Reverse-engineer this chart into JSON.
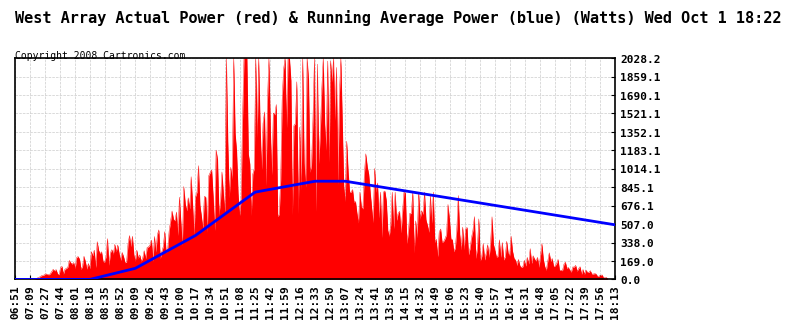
{
  "title": "West Array Actual Power (red) & Running Average Power (blue) (Watts) Wed Oct 1 18:22",
  "copyright": "Copyright 2008 Cartronics.com",
  "y_ticks": [
    0.0,
    169.0,
    338.0,
    507.0,
    676.1,
    845.1,
    1014.1,
    1183.1,
    1352.1,
    1521.1,
    1690.1,
    1859.1,
    2028.2
  ],
  "x_labels": [
    "06:51",
    "07:09",
    "07:27",
    "07:44",
    "08:01",
    "08:18",
    "08:35",
    "08:52",
    "09:09",
    "09:26",
    "09:43",
    "10:00",
    "10:17",
    "10:34",
    "10:51",
    "11:08",
    "11:25",
    "11:42",
    "11:59",
    "12:16",
    "12:33",
    "12:50",
    "13:07",
    "13:24",
    "13:41",
    "13:58",
    "14:15",
    "14:32",
    "14:49",
    "15:06",
    "15:23",
    "15:40",
    "15:57",
    "16:14",
    "16:31",
    "16:48",
    "17:05",
    "17:22",
    "17:39",
    "17:56",
    "18:13"
  ],
  "red_color": "#ff0000",
  "blue_color": "#0000ff",
  "bg_color": "#ffffff",
  "grid_color": "#cccccc",
  "title_fontsize": 11,
  "copyright_fontsize": 7,
  "tick_fontsize": 8,
  "border_color": "#000000",
  "ymax": 2028.2
}
